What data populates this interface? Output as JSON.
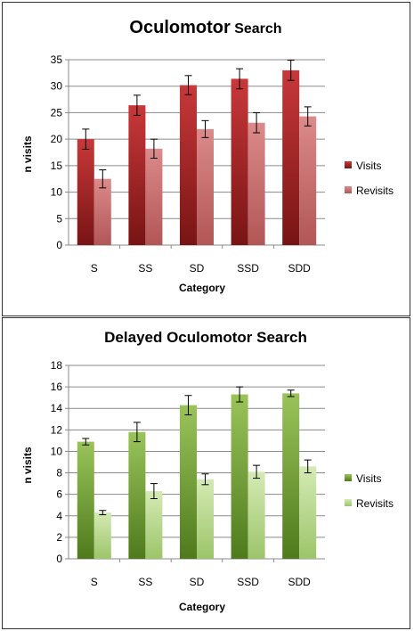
{
  "charts": [
    {
      "title_main": "Oculomotor",
      "title_rest": " Search",
      "chart_data": {
        "type": "bar",
        "categories": [
          "S",
          "SS",
          "SD",
          "SSD",
          "SDD"
        ],
        "series": [
          {
            "name": "Visits",
            "values": [
              20,
              26.4,
              30.2,
              31.4,
              33
            ],
            "errors": [
              1.9,
              1.9,
              1.8,
              1.9,
              1.9
            ],
            "colors": [
              "#c8383a",
              "#781414"
            ]
          },
          {
            "name": "Revisits",
            "values": [
              12.5,
              18.2,
              21.9,
              23.1,
              24.3
            ],
            "errors": [
              1.7,
              1.8,
              1.6,
              1.9,
              1.8
            ],
            "colors": [
              "#dc8a8a",
              "#b25656"
            ]
          }
        ],
        "xlabel": "Category",
        "ylabel": "n visits",
        "ylim": [
          0,
          35
        ],
        "yticks": [
          0,
          5,
          10,
          15,
          20,
          25,
          30,
          35
        ],
        "grid": true,
        "legend": "right"
      }
    },
    {
      "title_main": "Delayed Oculomotor  Search",
      "title_rest": "",
      "chart_data": {
        "type": "bar",
        "categories": [
          "S",
          "SS",
          "SD",
          "SSD",
          "SDD"
        ],
        "series": [
          {
            "name": "Visits",
            "values": [
              10.9,
              11.8,
              14.3,
              15.3,
              15.4
            ],
            "errors": [
              0.3,
              0.9,
              0.9,
              0.7,
              0.3
            ],
            "colors": [
              "#9ac45a",
              "#4f7a1c"
            ]
          },
          {
            "name": "Revisits",
            "values": [
              4.3,
              6.3,
              7.4,
              8.1,
              8.6
            ],
            "errors": [
              0.2,
              0.7,
              0.5,
              0.6,
              0.6
            ],
            "colors": [
              "#d5eab4",
              "#9cc56a"
            ]
          }
        ],
        "xlabel": "Category",
        "ylabel": "n visits",
        "ylim": [
          0,
          18
        ],
        "yticks": [
          0,
          2,
          4,
          6,
          8,
          10,
          12,
          14,
          16,
          18
        ],
        "grid": true,
        "legend": "right"
      }
    }
  ]
}
